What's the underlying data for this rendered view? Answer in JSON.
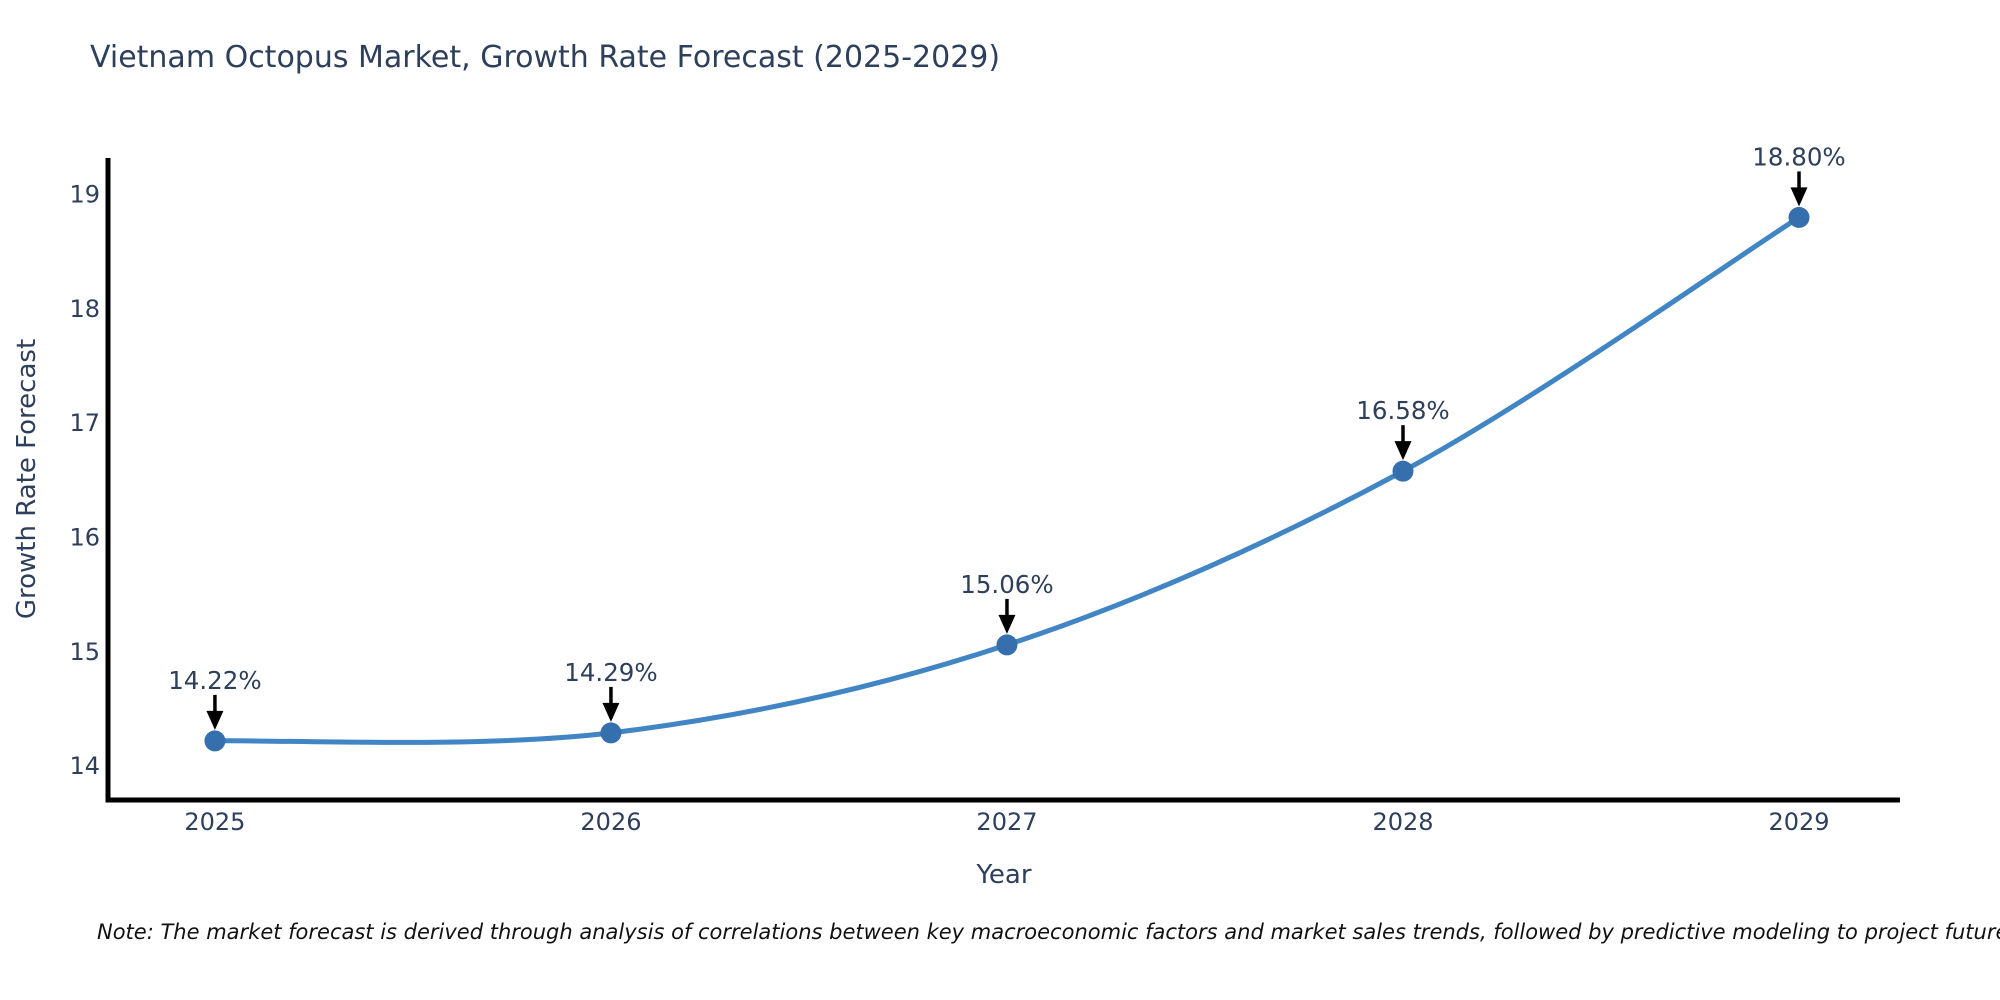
{
  "title": "Vietnam Octopus Market, Growth Rate Forecast (2025-2029)",
  "note": "Note: The market forecast is derived through analysis of correlations between key macroeconomic factors and market sales trends, followed by predictive modeling to project future sales",
  "colors": {
    "line": "#4185c5",
    "marker": "#356fae",
    "axis": "#000000",
    "text": "#2e3f5c",
    "annotation_text": "#2e3f5c",
    "arrow": "#000000",
    "background": "#ffffff"
  },
  "chart_data": {
    "type": "line",
    "line_shape": "spline",
    "x": [
      2025,
      2026,
      2027,
      2028,
      2029
    ],
    "values": [
      14.22,
      14.29,
      15.06,
      16.58,
      18.8
    ],
    "point_labels": [
      "14.22%",
      "14.29%",
      "15.06%",
      "16.58%",
      "18.80%"
    ],
    "series_name": "Growth Rate Forecast",
    "title": "Vietnam Octopus Market, Growth Rate Forecast (2025-2029)",
    "xlabel": "Year",
    "ylabel": "Growth Rate Forecast",
    "x_tick_labels": [
      "2025",
      "2026",
      "2027",
      "2028",
      "2029"
    ],
    "y_tick_labels": [
      "14",
      "15",
      "16",
      "17",
      "18",
      "19"
    ],
    "y_ticks": [
      14,
      15,
      16,
      17,
      18,
      19
    ],
    "xlim": [
      2024.73,
      2029.255
    ],
    "ylim": [
      13.703,
      19.32
    ],
    "grid": false,
    "legend_shown": false,
    "markers": true,
    "annotations_with_arrows": true
  }
}
